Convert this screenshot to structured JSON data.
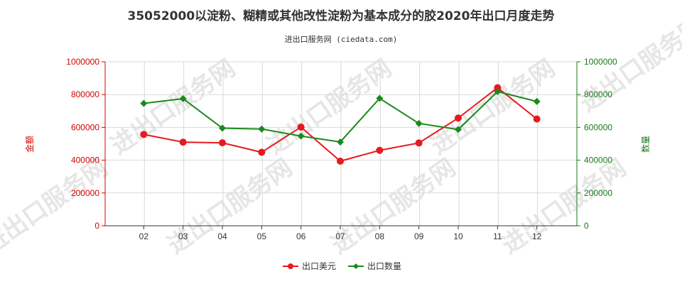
{
  "title": "35052000以淀粉、糊精或其他改性淀粉为基本成分的胶2020年出口月度走势",
  "subtitle": "进出口服务网 (ciedata.com)",
  "watermark": "进出口服务网",
  "colors": {
    "left_axis": "#d40000",
    "right_axis": "#1a7a1a",
    "series_usd": "#e8191f",
    "series_qty": "#1a8a1a"
  },
  "chart_data": {
    "type": "line",
    "categories": [
      "02",
      "03",
      "04",
      "05",
      "06",
      "07",
      "08",
      "09",
      "10",
      "11",
      "12"
    ],
    "ylabel_left": "金额",
    "ylabel_right": "数量",
    "ylim_left": [
      0,
      1000000
    ],
    "ylim_right": [
      0,
      1000000
    ],
    "yticks": [
      "0",
      "200000",
      "400000",
      "600000",
      "800000",
      "1000000"
    ],
    "grid": true,
    "legend_position": "bottom",
    "series": [
      {
        "name": "出口美元",
        "axis": "left",
        "marker": "circle",
        "color": "#e8191f",
        "values": [
          557000,
          510000,
          506000,
          448000,
          602000,
          394000,
          460000,
          505000,
          657000,
          842000,
          651000
        ]
      },
      {
        "name": "出口数量",
        "axis": "right",
        "marker": "diamond",
        "color": "#1a8a1a",
        "values": [
          746000,
          775000,
          595000,
          590000,
          547000,
          511000,
          777000,
          624000,
          587000,
          818000,
          758000
        ]
      }
    ]
  }
}
